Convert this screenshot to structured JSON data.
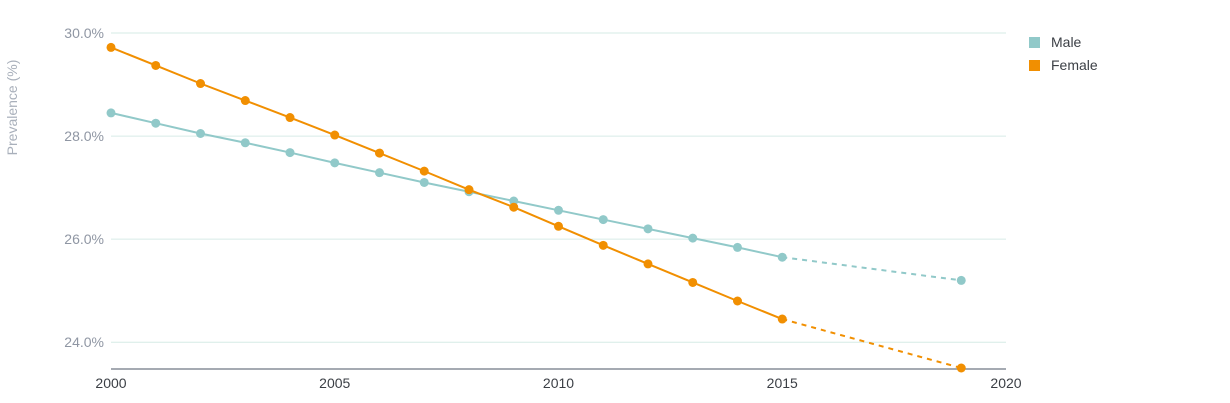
{
  "chart_data": {
    "type": "line",
    "title": "",
    "xlabel": "",
    "ylabel": "Prevalence (%)",
    "xlim": [
      2000,
      2020
    ],
    "ylim": [
      23.5,
      30.0
    ],
    "x_ticks": [
      2000,
      2005,
      2010,
      2015,
      2020
    ],
    "y_ticks": [
      24.0,
      26.0,
      28.0,
      30.0
    ],
    "y_tick_labels": [
      "24.0%",
      "26.0%",
      "28.0%",
      "30.0%"
    ],
    "grid": "horizontal",
    "legend_position": "top-right",
    "series": [
      {
        "name": "Male",
        "color": "#91c9c9",
        "x": [
          2000,
          2001,
          2002,
          2003,
          2004,
          2005,
          2006,
          2007,
          2008,
          2009,
          2010,
          2011,
          2012,
          2013,
          2014,
          2015
        ],
        "values": [
          28.45,
          28.25,
          28.05,
          27.87,
          27.68,
          27.48,
          27.29,
          27.1,
          26.92,
          26.74,
          26.56,
          26.38,
          26.2,
          26.02,
          25.84,
          25.65
        ],
        "projection": {
          "x": [
            2015,
            2019
          ],
          "values": [
            25.65,
            25.2
          ]
        }
      },
      {
        "name": "Female",
        "color": "#f18f01",
        "x": [
          2000,
          2001,
          2002,
          2003,
          2004,
          2005,
          2006,
          2007,
          2008,
          2009,
          2010,
          2011,
          2012,
          2013,
          2014,
          2015
        ],
        "values": [
          29.72,
          29.37,
          29.02,
          28.69,
          28.36,
          28.02,
          27.67,
          27.32,
          26.96,
          26.62,
          26.25,
          25.88,
          25.52,
          25.16,
          24.8,
          24.45
        ],
        "projection": {
          "x": [
            2015,
            2019
          ],
          "values": [
            24.45,
            23.5
          ]
        }
      }
    ]
  }
}
